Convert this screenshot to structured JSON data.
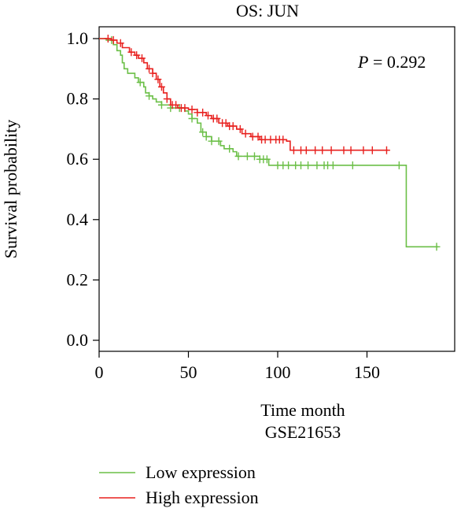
{
  "chart_data": {
    "type": "line",
    "title": "OS: JUN",
    "xlabel": "Time month",
    "subtitle": "GSE21653",
    "ylabel": "Survival probability",
    "annotation": {
      "prefix": "P",
      "text": " = 0.292"
    },
    "xlim": [
      0,
      195
    ],
    "ylim": [
      0,
      1
    ],
    "x_ticks": [
      0,
      50,
      100,
      150
    ],
    "y_ticks": [
      0.0,
      0.2,
      0.4,
      0.6,
      0.8,
      1.0
    ],
    "y_tick_labels": [
      "0.0",
      "0.2",
      "0.4",
      "0.6",
      "0.8",
      "1.0"
    ],
    "grid": false,
    "legend_position": "bottom-left",
    "series": [
      {
        "name": "Low expression",
        "color": "#6bbf47",
        "steps": [
          [
            0,
            1.0
          ],
          [
            4,
            0.995
          ],
          [
            8,
            0.98
          ],
          [
            10,
            0.96
          ],
          [
            12,
            0.945
          ],
          [
            13,
            0.92
          ],
          [
            14,
            0.9
          ],
          [
            16,
            0.885
          ],
          [
            20,
            0.87
          ],
          [
            22,
            0.855
          ],
          [
            25,
            0.84
          ],
          [
            26,
            0.82
          ],
          [
            28,
            0.81
          ],
          [
            30,
            0.8
          ],
          [
            32,
            0.79
          ],
          [
            35,
            0.78
          ],
          [
            40,
            0.77
          ],
          [
            48,
            0.76
          ],
          [
            50,
            0.75
          ],
          [
            52,
            0.735
          ],
          [
            55,
            0.72
          ],
          [
            57,
            0.69
          ],
          [
            60,
            0.675
          ],
          [
            63,
            0.66
          ],
          [
            68,
            0.645
          ],
          [
            70,
            0.635
          ],
          [
            75,
            0.625
          ],
          [
            77,
            0.61
          ],
          [
            90,
            0.6
          ],
          [
            95,
            0.58
          ],
          [
            171,
            0.58
          ],
          [
            172,
            0.31
          ],
          [
            190,
            0.31
          ]
        ],
        "censor": [
          7,
          23,
          28,
          35,
          40,
          45,
          52,
          58,
          60,
          63,
          67,
          73,
          78,
          83,
          87,
          90,
          92,
          94,
          100,
          103,
          106,
          110,
          113,
          117,
          122,
          126,
          128,
          131,
          142,
          168,
          189
        ]
      },
      {
        "name": "High expression",
        "color": "#e8211f",
        "steps": [
          [
            0,
            1.0
          ],
          [
            7,
            0.995
          ],
          [
            10,
            0.985
          ],
          [
            13,
            0.97
          ],
          [
            17,
            0.955
          ],
          [
            20,
            0.945
          ],
          [
            22,
            0.935
          ],
          [
            25,
            0.92
          ],
          [
            27,
            0.9
          ],
          [
            30,
            0.885
          ],
          [
            32,
            0.865
          ],
          [
            34,
            0.84
          ],
          [
            36,
            0.82
          ],
          [
            38,
            0.8
          ],
          [
            40,
            0.78
          ],
          [
            44,
            0.77
          ],
          [
            50,
            0.765
          ],
          [
            55,
            0.755
          ],
          [
            60,
            0.745
          ],
          [
            63,
            0.735
          ],
          [
            67,
            0.72
          ],
          [
            72,
            0.71
          ],
          [
            77,
            0.7
          ],
          [
            80,
            0.685
          ],
          [
            85,
            0.675
          ],
          [
            90,
            0.665
          ],
          [
            98,
            0.665
          ],
          [
            105,
            0.66
          ],
          [
            107,
            0.63
          ],
          [
            162,
            0.63
          ]
        ],
        "censor": [
          5,
          8,
          12,
          18,
          21,
          24,
          28,
          30,
          33,
          35,
          38,
          41,
          43,
          46,
          48,
          52,
          55,
          58,
          61,
          64,
          66,
          69,
          71,
          73,
          75,
          79,
          82,
          86,
          89,
          91,
          93,
          96,
          99,
          101,
          103,
          109,
          113,
          116,
          121,
          125,
          130,
          137,
          141,
          148,
          153,
          161
        ]
      }
    ]
  }
}
